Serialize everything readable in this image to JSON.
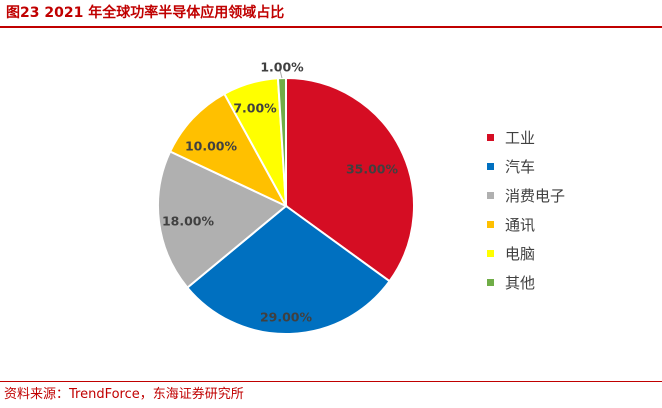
{
  "figure": {
    "title": "图23  2021 年全球功率半导体应用领域占比",
    "source": "资料来源：TrendForce，东海证券研究所"
  },
  "chart_data": {
    "type": "pie",
    "categories": [
      "工业",
      "汽车",
      "消费电子",
      "通讯",
      "电脑",
      "其他"
    ],
    "values": [
      35.0,
      29.0,
      18.0,
      10.0,
      7.0,
      1.0
    ],
    "labels": [
      "35.00%",
      "29.00%",
      "18.00%",
      "10.00%",
      "7.00%",
      "1.00%"
    ],
    "colors": [
      "#d50d23",
      "#0070c0",
      "#b0b0b0",
      "#ffc000",
      "#ffff00",
      "#70ad47"
    ],
    "start_angle": "12 o'clock",
    "direction": "clockwise",
    "legend": "right"
  }
}
